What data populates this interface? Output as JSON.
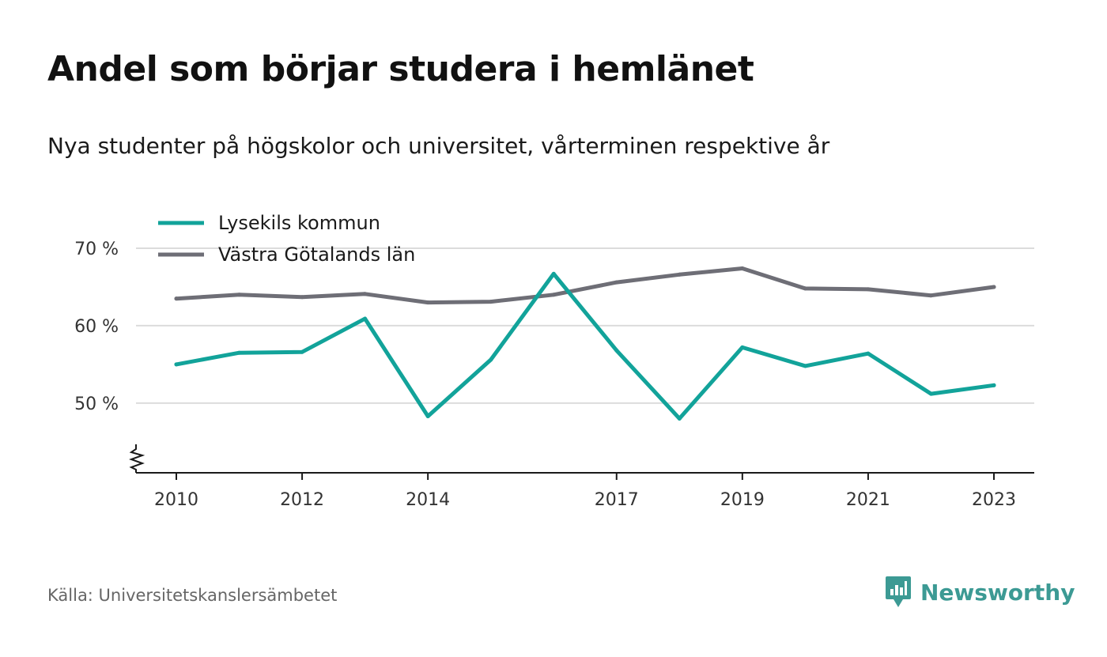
{
  "title": "Andel som börjar studera i hemlänet",
  "subtitle": "Nya studenter på högskolor och universitet, vårterminen respektive år",
  "source": "Källa: Universitetskanslersämbetet",
  "brand": {
    "name": "Newsworthy",
    "icon": "newsworthy-logo-icon",
    "color": "#3c9a94"
  },
  "chart_data": {
    "type": "line",
    "x": [
      2010,
      2011,
      2012,
      2013,
      2014,
      2015,
      2016,
      2017,
      2018,
      2019,
      2020,
      2021,
      2022,
      2023
    ],
    "x_tick_labels": [
      "2010",
      "2012",
      "2014",
      "2017",
      "2019",
      "2021",
      "2023"
    ],
    "y_tick_labels": [
      "70 %",
      "60 %",
      "50 %"
    ],
    "ylim": [
      41,
      70
    ],
    "y_axis_break": true,
    "grid": true,
    "legend_position": "top-left",
    "series": [
      {
        "name": "Lysekils kommun",
        "color": "#12a39a",
        "values": [
          55.0,
          56.5,
          56.6,
          60.9,
          48.3,
          55.6,
          66.7,
          56.8,
          48.0,
          57.2,
          54.8,
          56.4,
          51.2,
          52.3
        ]
      },
      {
        "name": "Västra Götalands län",
        "color": "#6e6e76",
        "values": [
          63.5,
          64.0,
          63.7,
          64.1,
          63.0,
          63.1,
          64.0,
          65.6,
          66.6,
          67.4,
          64.8,
          64.7,
          63.9,
          65.0
        ]
      }
    ]
  }
}
